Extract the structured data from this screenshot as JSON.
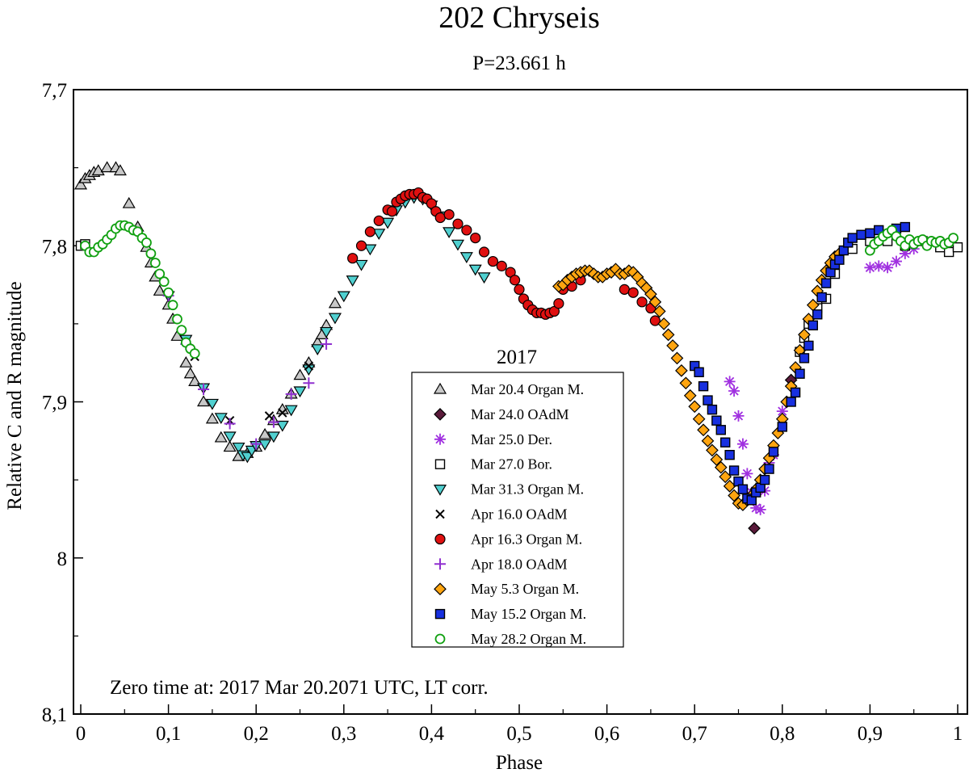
{
  "chart_data": {
    "type": "scatter",
    "title": "202 Chryseis",
    "subtitle": "P=23.661 h",
    "xlabel": "Phase",
    "ylabel": "Relative C and R magnitude",
    "xlim": [
      0,
      1
    ],
    "ylim": [
      8.1,
      7.7
    ],
    "y_inverted": true,
    "grid": false,
    "x_ticks": [
      0,
      0.1,
      0.2,
      0.3,
      0.4,
      0.5,
      0.6,
      0.7,
      0.8,
      0.9,
      1
    ],
    "x_tick_labels": [
      "0",
      "0,1",
      "0,2",
      "0,3",
      "0,4",
      "0,5",
      "0,6",
      "0,7",
      "0,8",
      "0,9",
      "1"
    ],
    "y_ticks": [
      7.7,
      7.8,
      7.9,
      8.0,
      8.1
    ],
    "y_tick_labels": [
      "7,7",
      "7,8",
      "7,9",
      "8",
      "8,1"
    ],
    "legend_title": "2017",
    "legend_position": "center",
    "annotation": "Zero time at: 2017 Mar 20.2071 UTC, LT corr.",
    "series": [
      {
        "name": "Mar 20.4 Organ M.",
        "marker": "triangle-up",
        "fill": "#c8c8c8",
        "stroke": "#000000",
        "x": [
          0.0,
          0.005,
          0.01,
          0.015,
          0.02,
          0.03,
          0.04,
          0.045,
          0.055,
          0.065,
          0.075,
          0.08,
          0.085,
          0.09,
          0.1,
          0.105,
          0.11,
          0.12,
          0.125,
          0.13,
          0.14,
          0.15,
          0.16,
          0.17,
          0.18,
          0.19,
          0.2,
          0.21,
          0.22,
          0.23,
          0.24,
          0.25,
          0.26,
          0.27,
          0.275,
          0.28,
          0.29
        ],
        "y": [
          7.761,
          7.757,
          7.755,
          7.753,
          7.752,
          7.75,
          7.75,
          7.752,
          7.773,
          7.788,
          7.801,
          7.811,
          7.82,
          7.829,
          7.838,
          7.847,
          7.858,
          7.875,
          7.882,
          7.887,
          7.9,
          7.911,
          7.923,
          7.929,
          7.935,
          7.933,
          7.929,
          7.921,
          7.912,
          7.905,
          7.895,
          7.883,
          7.875,
          7.862,
          7.857,
          7.851,
          7.837
        ]
      },
      {
        "name": "Mar 24.0 OAdM",
        "marker": "diamond",
        "fill": "#5a1a3a",
        "stroke": "#000000",
        "x": [
          0.768,
          0.81,
          0.862
        ],
        "y": [
          7.981,
          7.886,
          7.81
        ]
      },
      {
        "name": "Mar 25.0 Der.",
        "marker": "asterisk",
        "fill": "#a030e0",
        "stroke": "#a030e0",
        "x": [
          0.74,
          0.745,
          0.75,
          0.755,
          0.76,
          0.765,
          0.77,
          0.775,
          0.78,
          0.785,
          0.79,
          0.8,
          0.9,
          0.91,
          0.92,
          0.93,
          0.94,
          0.95
        ],
        "y": [
          7.887,
          7.893,
          7.909,
          7.927,
          7.946,
          7.958,
          7.968,
          7.969,
          7.957,
          7.939,
          7.934,
          7.906,
          7.814,
          7.813,
          7.814,
          7.81,
          7.805,
          7.802
        ]
      },
      {
        "name": "Mar 27.0 Bor.",
        "marker": "square-open",
        "fill": "#ffffff",
        "stroke": "#000000",
        "x": [
          0.0,
          0.005,
          0.82,
          0.825,
          0.83,
          0.84,
          0.85,
          0.86,
          0.88,
          0.9,
          0.92,
          0.94,
          0.96,
          0.98,
          0.99,
          1.0
        ],
        "y": [
          7.8,
          7.799,
          7.868,
          7.859,
          7.85,
          7.84,
          7.834,
          7.818,
          7.802,
          7.797,
          7.797,
          7.8,
          7.797,
          7.801,
          7.804,
          7.801
        ]
      },
      {
        "name": "Mar 31.3 Organ M.",
        "marker": "triangle-down",
        "fill": "#50d0d0",
        "stroke": "#000000",
        "x": [
          0.1,
          0.12,
          0.14,
          0.15,
          0.16,
          0.17,
          0.18,
          0.185,
          0.19,
          0.195,
          0.2,
          0.21,
          0.22,
          0.23,
          0.24,
          0.25,
          0.26,
          0.27,
          0.28,
          0.29,
          0.3,
          0.31,
          0.32,
          0.33,
          0.34,
          0.35,
          0.36,
          0.37,
          0.38,
          0.39,
          0.4,
          0.41,
          0.42,
          0.43,
          0.44,
          0.45,
          0.46
        ],
        "y": [
          7.832,
          7.86,
          7.891,
          7.901,
          7.91,
          7.922,
          7.929,
          7.934,
          7.935,
          7.931,
          7.928,
          7.927,
          7.922,
          7.915,
          7.905,
          7.893,
          7.879,
          7.866,
          7.855,
          7.846,
          7.832,
          7.822,
          7.812,
          7.802,
          7.792,
          7.785,
          7.777,
          7.772,
          7.769,
          7.77,
          7.774,
          7.781,
          7.791,
          7.799,
          7.807,
          7.815,
          7.82
        ]
      },
      {
        "name": "Apr 16.0 OAdM",
        "marker": "cross",
        "fill": "#000000",
        "stroke": "#000000",
        "x": [
          0.13,
          0.17,
          0.215,
          0.23,
          0.26
        ],
        "y": [
          7.871,
          7.912,
          7.909,
          7.907,
          7.877
        ]
      },
      {
        "name": "Apr 16.3 Organ M.",
        "marker": "circle-filled",
        "fill": "#e01010",
        "stroke": "#000000",
        "x": [
          0.31,
          0.32,
          0.33,
          0.34,
          0.35,
          0.355,
          0.36,
          0.365,
          0.37,
          0.375,
          0.38,
          0.385,
          0.39,
          0.395,
          0.4,
          0.405,
          0.41,
          0.42,
          0.43,
          0.44,
          0.45,
          0.46,
          0.47,
          0.48,
          0.49,
          0.495,
          0.5,
          0.505,
          0.51,
          0.515,
          0.52,
          0.525,
          0.53,
          0.535,
          0.54,
          0.545,
          0.55,
          0.56,
          0.57,
          0.62,
          0.63,
          0.64,
          0.65,
          0.655
        ],
        "y": [
          7.808,
          7.8,
          7.791,
          7.784,
          7.777,
          7.778,
          7.772,
          7.77,
          7.768,
          7.767,
          7.767,
          7.766,
          7.769,
          7.77,
          7.773,
          7.778,
          7.782,
          7.78,
          7.786,
          7.79,
          7.795,
          7.804,
          7.81,
          7.813,
          7.817,
          7.822,
          7.828,
          7.834,
          7.838,
          7.841,
          7.843,
          7.843,
          7.844,
          7.843,
          7.842,
          7.837,
          7.828,
          7.826,
          7.822,
          7.828,
          7.83,
          7.836,
          7.84,
          7.848
        ]
      },
      {
        "name": "Apr 18.0 OAdM",
        "marker": "plus",
        "fill": "#9030d0",
        "stroke": "#9030d0",
        "x": [
          0.1,
          0.12,
          0.14,
          0.17,
          0.2,
          0.22,
          0.24,
          0.26,
          0.28
        ],
        "y": [
          7.832,
          7.863,
          7.892,
          7.914,
          7.927,
          7.913,
          7.895,
          7.888,
          7.863
        ]
      },
      {
        "name": "May 5.3 Organ M.",
        "marker": "diamond",
        "fill": "#ffa510",
        "stroke": "#000000",
        "x": [
          0.545,
          0.55,
          0.555,
          0.56,
          0.565,
          0.57,
          0.575,
          0.58,
          0.585,
          0.59,
          0.595,
          0.6,
          0.605,
          0.61,
          0.615,
          0.62,
          0.625,
          0.63,
          0.635,
          0.64,
          0.645,
          0.65,
          0.655,
          0.66,
          0.665,
          0.67,
          0.675,
          0.68,
          0.685,
          0.69,
          0.695,
          0.7,
          0.705,
          0.71,
          0.715,
          0.72,
          0.725,
          0.73,
          0.735,
          0.74,
          0.745,
          0.75,
          0.755,
          0.76,
          0.765,
          0.77,
          0.775,
          0.78,
          0.785,
          0.79,
          0.795,
          0.8,
          0.805,
          0.81,
          0.815,
          0.82,
          0.825,
          0.83,
          0.835,
          0.84,
          0.845,
          0.85,
          0.855,
          0.86,
          0.865
        ],
        "y": [
          7.826,
          7.825,
          7.822,
          7.82,
          7.818,
          7.817,
          7.816,
          7.816,
          7.818,
          7.82,
          7.82,
          7.818,
          7.817,
          7.815,
          7.818,
          7.818,
          7.816,
          7.817,
          7.82,
          7.824,
          7.827,
          7.831,
          7.836,
          7.842,
          7.85,
          7.857,
          7.864,
          7.872,
          7.88,
          7.888,
          7.896,
          7.903,
          7.911,
          7.918,
          7.925,
          7.931,
          7.937,
          7.942,
          7.948,
          7.954,
          7.96,
          7.965,
          7.966,
          7.963,
          7.96,
          7.956,
          7.95,
          7.943,
          7.936,
          7.928,
          7.92,
          7.911,
          7.9,
          7.89,
          7.878,
          7.867,
          7.857,
          7.847,
          7.838,
          7.829,
          7.822,
          7.816,
          7.811,
          7.807,
          7.805
        ]
      },
      {
        "name": "May 15.2 Organ M.",
        "marker": "square-filled",
        "fill": "#1830e0",
        "stroke": "#000000",
        "x": [
          0.7,
          0.705,
          0.71,
          0.715,
          0.72,
          0.725,
          0.73,
          0.735,
          0.74,
          0.745,
          0.75,
          0.755,
          0.76,
          0.765,
          0.77,
          0.775,
          0.78,
          0.785,
          0.79,
          0.8,
          0.81,
          0.815,
          0.82,
          0.825,
          0.83,
          0.835,
          0.84,
          0.845,
          0.85,
          0.855,
          0.86,
          0.865,
          0.87,
          0.875,
          0.88,
          0.89,
          0.9,
          0.91,
          0.93,
          0.94
        ],
        "y": [
          7.877,
          7.881,
          7.89,
          7.899,
          7.905,
          7.912,
          7.918,
          7.926,
          7.934,
          7.944,
          7.951,
          7.956,
          7.962,
          7.963,
          7.958,
          7.955,
          7.95,
          7.943,
          7.932,
          7.916,
          7.9,
          7.894,
          7.882,
          7.872,
          7.864,
          7.851,
          7.844,
          7.833,
          7.824,
          7.817,
          7.812,
          7.809,
          7.803,
          7.798,
          7.795,
          7.793,
          7.792,
          7.79,
          7.789,
          7.788
        ]
      },
      {
        "name": "May 28.2 Organ M.",
        "marker": "circle-open",
        "fill": "#ffffff",
        "stroke": "#10a010",
        "x": [
          0.005,
          0.01,
          0.015,
          0.02,
          0.025,
          0.03,
          0.035,
          0.04,
          0.045,
          0.05,
          0.055,
          0.06,
          0.065,
          0.07,
          0.075,
          0.08,
          0.085,
          0.09,
          0.095,
          0.1,
          0.105,
          0.11,
          0.115,
          0.12,
          0.125,
          0.13,
          0.9,
          0.905,
          0.91,
          0.915,
          0.92,
          0.925,
          0.93,
          0.935,
          0.94,
          0.945,
          0.95,
          0.955,
          0.96,
          0.965,
          0.97,
          0.975,
          0.98,
          0.985,
          0.99,
          0.995
        ],
        "y": [
          7.8,
          7.804,
          7.804,
          7.801,
          7.799,
          7.796,
          7.793,
          7.789,
          7.787,
          7.787,
          7.788,
          7.79,
          7.791,
          7.795,
          7.798,
          7.805,
          7.811,
          7.818,
          7.823,
          7.83,
          7.838,
          7.847,
          7.854,
          7.862,
          7.866,
          7.869,
          7.803,
          7.799,
          7.797,
          7.794,
          7.792,
          7.79,
          7.794,
          7.797,
          7.8,
          7.796,
          7.799,
          7.797,
          7.796,
          7.8,
          7.797,
          7.798,
          7.797,
          7.799,
          7.798,
          7.795
        ]
      }
    ]
  }
}
